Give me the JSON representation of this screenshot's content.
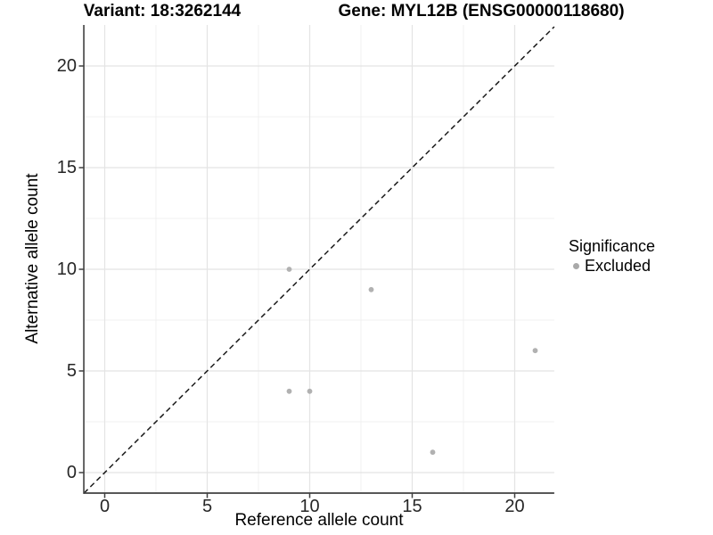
{
  "titles": {
    "left": "Variant: 18:3262144",
    "right": "Gene: MYL12B (ENSG00000118680)"
  },
  "chart_data": {
    "type": "scatter",
    "title_left": "Variant: 18:3262144",
    "title_right": "Gene: MYL12B (ENSG00000118680)",
    "xlabel": "Reference allele count",
    "ylabel": "Alternative allele count",
    "xlim": [
      -1.02,
      21.93
    ],
    "ylim": [
      -1.01,
      22.02
    ],
    "xticks": [
      0,
      5,
      10,
      15,
      20
    ],
    "yticks": [
      0,
      5,
      10,
      15,
      20
    ],
    "xminor": [
      2.5,
      7.5,
      12.5,
      17.5
    ],
    "yminor": [
      2.5,
      7.5,
      12.5,
      17.5
    ],
    "grid": "on",
    "series": [
      {
        "name": "Excluded",
        "points": [
          {
            "x": 9,
            "y": 10
          },
          {
            "x": 9,
            "y": 4
          },
          {
            "x": 10,
            "y": 4
          },
          {
            "x": 13,
            "y": 9
          },
          {
            "x": 16,
            "y": 1
          },
          {
            "x": 21,
            "y": 6
          }
        ]
      }
    ],
    "identity_line": {
      "style": "dashed",
      "slope": 1,
      "intercept": 0
    },
    "legend": {
      "title": "Significance",
      "position": "right",
      "items": [
        {
          "label": "Excluded",
          "color": "#a9a9a9"
        }
      ]
    },
    "colors": {
      "point": "#b1b1b1",
      "legend_dot": "#a9a9a9",
      "grid_major": "#e4e4e4",
      "grid_minor": "#f1f1f1",
      "axis_line": "#404040",
      "identity_line": "#1a1a1a",
      "tick_text": "#262626"
    }
  }
}
